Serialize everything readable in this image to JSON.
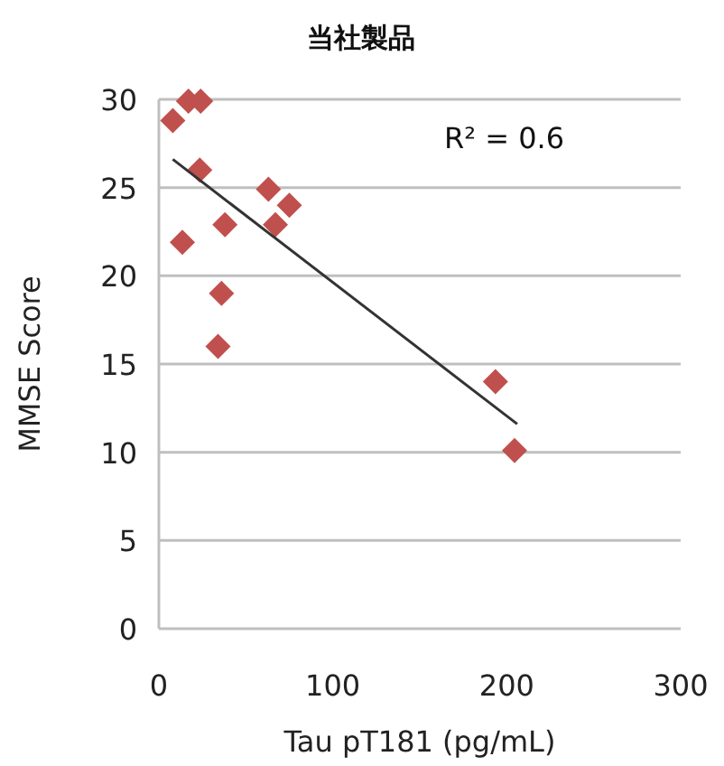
{
  "chart_data": {
    "type": "scatter",
    "title": "当社製品",
    "xlabel": "Tau pT181 (pg/mL)",
    "ylabel": "MMSE Score",
    "xlim": [
      0,
      300
    ],
    "xticks": [
      0,
      100,
      200,
      300
    ],
    "ylim": [
      0,
      30
    ],
    "yticks": [
      0,
      5,
      10,
      15,
      20,
      25,
      30
    ],
    "grid": "y",
    "marker": "diamond",
    "annotations": [
      "R² = 0.6"
    ],
    "series": [
      {
        "type": "scatter",
        "color": "#c0504d",
        "x": [
          8,
          17,
          24,
          23.5,
          13.5,
          38,
          36,
          34,
          63,
          67,
          75,
          193.5,
          204.5
        ],
        "values": [
          28.8,
          29.9,
          29.9,
          26,
          21.9,
          22.9,
          19,
          16,
          24.9,
          22.9,
          24,
          14,
          10.1
        ]
      },
      {
        "type": "line",
        "color": "#333333",
        "x": [
          8,
          206
        ],
        "values": [
          26.6,
          11.6
        ],
        "marker": "none"
      }
    ]
  }
}
